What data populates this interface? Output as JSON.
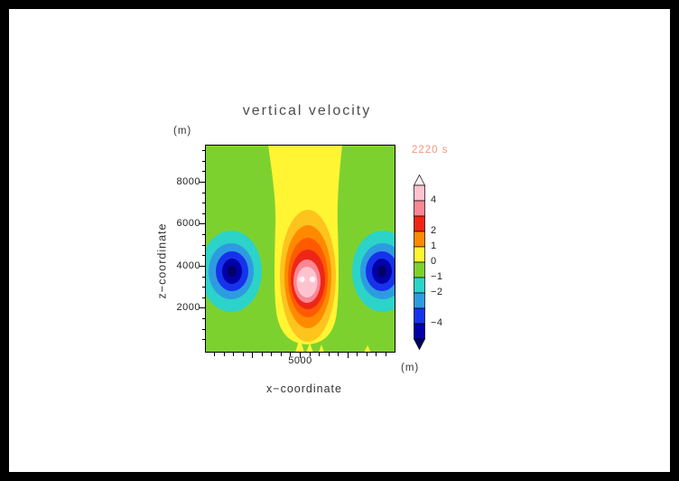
{
  "frame": {
    "background": "#ffffff",
    "border_color": "#000000"
  },
  "title": "vertical velocity",
  "timestamp": "2220 s",
  "timestamp_color": "#F2967E",
  "axes": {
    "x_label": "x−coordinate",
    "y_label": "z−coordinate",
    "x_unit": "(m)",
    "y_unit": "(m)",
    "x_tick_labels": [
      "5000"
    ],
    "y_tick_labels": [
      "8000",
      "6000",
      "4000",
      "2000"
    ],
    "x_range": [
      0,
      10000
    ],
    "y_range": [
      0,
      9800
    ]
  },
  "colorbar": {
    "labels": [
      "4",
      "2",
      "1",
      "0",
      "−1",
      "−2",
      "−4"
    ],
    "orientation": "vertical",
    "arrow_top": true,
    "arrow_bottom": true
  },
  "chart_data": {
    "type": "heatmap",
    "subtype": "filled_contour",
    "title": "vertical velocity",
    "xlabel": "x−coordinate (m)",
    "ylabel": "z−coordinate (m)",
    "x_range": [
      0,
      10000
    ],
    "y_range": [
      0,
      9800
    ],
    "time_annotation": "2220 s",
    "levels_labeled": [
      4,
      2,
      1,
      0,
      -1,
      -2,
      -4
    ],
    "legend_position": "right",
    "grid": false,
    "palette": {
      "white_core": "#FFF3F6",
      "light_pink": "#FFC3CF",
      "rose": "#FA8793",
      "red": "#EF2617",
      "red_orange": "#FF5A00",
      "orange": "#FF8A00",
      "amber": "#FFC31E",
      "yellow": "#FFF533",
      "green": "#7DD12F",
      "cyan": "#2BD3C9",
      "light_blue": "#2E9BE0",
      "blue": "#1732EC",
      "dark_blue": "#0000A8",
      "navy": "#000066"
    },
    "features": [
      {
        "name": "central updraft maximum",
        "x": 5000,
        "z": 3800,
        "value": "> 4"
      },
      {
        "name": "left downdraft minimum",
        "x": 1400,
        "z": 3800,
        "value": "< −4"
      },
      {
        "name": "right downdraft minimum",
        "x": 8700,
        "z": 3800,
        "value": "< −4"
      },
      {
        "name": "background field",
        "value": "−1 to 0 (green), with 0 to 1 yellow band above and below core"
      }
    ]
  }
}
